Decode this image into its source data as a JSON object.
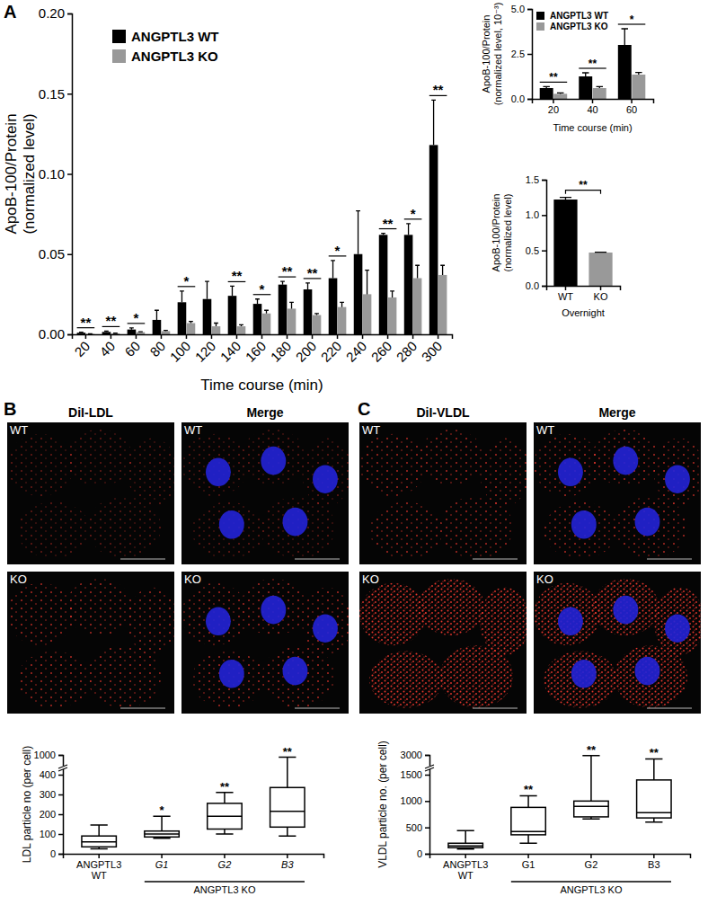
{
  "chart_data": [
    {
      "type": "bar",
      "categories": [
        "20",
        "40",
        "60",
        "80",
        "100",
        "120",
        "140",
        "160",
        "180",
        "200",
        "220",
        "240",
        "260",
        "280",
        "300"
      ],
      "series": [
        {
          "name": "ANGPTL3 WT",
          "color": "#000000",
          "values": [
            0.001,
            0.0015,
            0.003,
            0.009,
            0.02,
            0.022,
            0.024,
            0.019,
            0.031,
            0.028,
            0.035,
            0.05,
            0.062,
            0.062,
            0.118
          ],
          "errors": [
            0.0003,
            0.0005,
            0.001,
            0.006,
            0.007,
            0.011,
            0.006,
            0.003,
            0.002,
            0.004,
            0.011,
            0.027,
            0.001,
            0.007,
            0.028
          ]
        },
        {
          "name": "ANGPTL3 KO",
          "color": "#999999",
          "values": [
            0.0003,
            0.0006,
            0.0014,
            0.002,
            0.007,
            0.005,
            0.005,
            0.013,
            0.016,
            0.012,
            0.017,
            0.025,
            0.023,
            0.035,
            0.037
          ],
          "errors": [
            0.0001,
            0.0001,
            0.0002,
            0.0005,
            0.001,
            0.002,
            0.001,
            0.002,
            0.004,
            0.001,
            0.003,
            0.015,
            0.004,
            0.008,
            0.006
          ]
        }
      ],
      "annotations": [
        "**",
        "**",
        "*",
        null,
        "*",
        null,
        "**",
        "*",
        "**",
        "**",
        "*",
        null,
        "**",
        "*",
        "**"
      ],
      "x_label": "Time course (min)",
      "y_label": [
        "ApoB-100/Protein",
        "(normalized level)"
      ],
      "ylim": [
        0,
        0.2
      ],
      "yticks": [
        {
          "value": 0,
          "label": "0.00"
        },
        0.05,
        {
          "value": 0.1,
          "label": "0.10"
        },
        0.15,
        {
          "value": 0.2,
          "label": "0.20"
        }
      ],
      "legend": "top-left"
    },
    {
      "type": "bar",
      "categories": [
        "20",
        "40",
        "60"
      ],
      "series": [
        {
          "name": "ANGPTL3 WT",
          "color": "#000000",
          "values": [
            0.6,
            1.25,
            3.0
          ],
          "errors": [
            0.08,
            0.2,
            0.9
          ]
        },
        {
          "name": "ANGPTL3 KO",
          "color": "#999999",
          "values": [
            0.28,
            0.6,
            1.35
          ],
          "errors": [
            0.05,
            0.08,
            0.12
          ]
        }
      ],
      "annotations": [
        "**",
        "**",
        "*"
      ],
      "x_label": "Time course (min)",
      "y_label": [
        "ApoB-100/Protein",
        "(normalized level, 10⁻³)"
      ],
      "ylim": [
        0,
        5
      ],
      "yticks": [
        {
          "value": 0,
          "label": "0.0"
        },
        2.5,
        {
          "value": 5,
          "label": "5.0"
        }
      ],
      "legend": "top-left"
    },
    {
      "type": "bar",
      "categories": [
        "WT",
        "KO"
      ],
      "values": [
        1.22,
        0.47
      ],
      "errors": [
        0.03,
        0.005
      ],
      "colors": [
        "#000000",
        "#999999"
      ],
      "annotations": "**",
      "x_label": "Overnight",
      "y_label": [
        "ApoB-100/Protein",
        "(normalized level)"
      ],
      "ylim": [
        0,
        1.5
      ],
      "yticks": [
        {
          "value": 0,
          "label": "0.0"
        },
        0.5,
        {
          "value": 1,
          "label": "1.0"
        },
        1.5
      ]
    },
    {
      "type": "box",
      "categories": [
        "ANGPTL3 WT",
        "G1",
        "G2",
        "B3"
      ],
      "group_label": "ANGPTL3 KO",
      "min": [
        25,
        78,
        100,
        90
      ],
      "q1": [
        35,
        85,
        125,
        135
      ],
      "median": [
        60,
        100,
        190,
        215
      ],
      "q3": [
        90,
        115,
        255,
        335
      ],
      "max": [
        145,
        190,
        310,
        930
      ],
      "annotations": [
        null,
        "*",
        "**",
        "**"
      ],
      "y_label": "LDL particle no (per cell)",
      "ylim": [
        0,
        1000
      ],
      "yticks": [
        0,
        100,
        200,
        300,
        400,
        1000
      ]
    },
    {
      "type": "box",
      "categories": [
        "ANGPTL3 WT",
        "G1",
        "G2",
        "B3"
      ],
      "group_label": "ANGPTL3 KO",
      "min": [
        90,
        200,
        660,
        600
      ],
      "q1": [
        115,
        360,
        700,
        680
      ],
      "median": [
        150,
        420,
        900,
        780
      ],
      "q3": [
        200,
        880,
        1000,
        1400
      ],
      "max": [
        440,
        1100,
        2950,
        2700
      ],
      "annotations": [
        null,
        "**",
        "**",
        "**"
      ],
      "y_label": "VLDL particle no. (per cell)",
      "ylim": [
        0,
        3000
      ],
      "yticks": [
        0,
        500,
        1000,
        1500,
        3000
      ]
    }
  ],
  "figure": {
    "panel_labels": [
      "A",
      "B",
      "C"
    ],
    "images": [
      {
        "titles": [
          "DiI-LDL",
          "Merge"
        ],
        "rows": [
          "WT",
          "KO"
        ]
      },
      {
        "titles": [
          "DiI-VLDL",
          "Merge"
        ],
        "rows": [
          "WT",
          "KO"
        ]
      }
    ]
  }
}
